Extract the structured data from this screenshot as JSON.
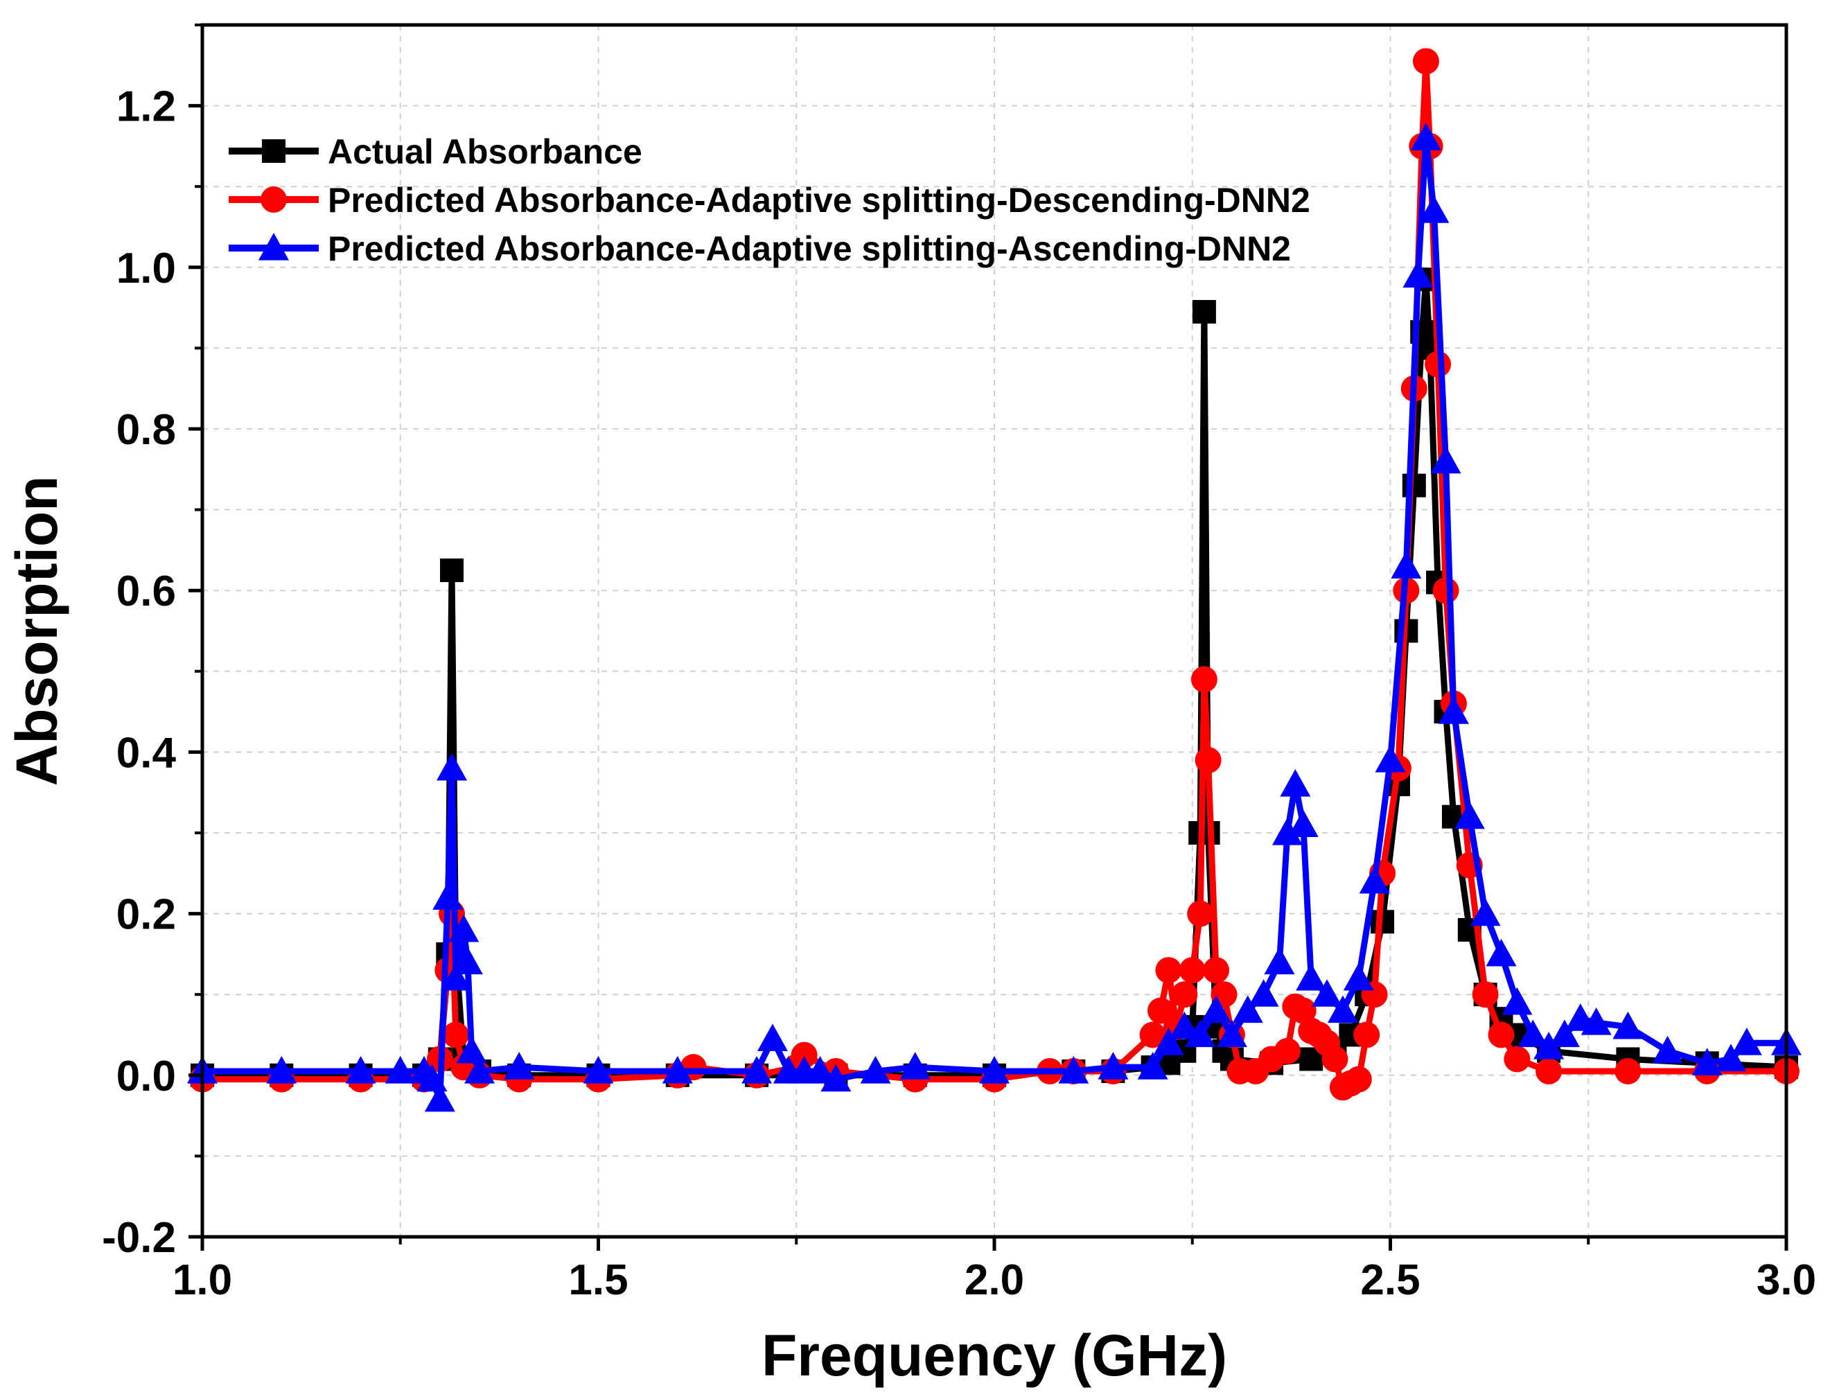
{
  "chart_data": {
    "type": "line",
    "title": "",
    "xlabel": "Frequency (GHz)",
    "ylabel": "Absorption",
    "xlim": [
      1.0,
      3.0
    ],
    "ylim": [
      -0.2,
      1.3
    ],
    "x_ticks": [
      "1.0",
      "1.5",
      "2.0",
      "2.5",
      "3.0"
    ],
    "y_ticks": [
      "-0.2",
      "0.0",
      "0.2",
      "0.4",
      "0.6",
      "0.8",
      "1.0",
      "1.2"
    ],
    "grid": true,
    "legend_position": "top-left",
    "series": [
      {
        "name": "Actual Absorbance",
        "color": "#000000",
        "marker": "square",
        "x": [
          1.0,
          1.1,
          1.2,
          1.28,
          1.3,
          1.31,
          1.315,
          1.32,
          1.33,
          1.35,
          1.4,
          1.5,
          1.6,
          1.7,
          1.8,
          1.9,
          2.0,
          2.1,
          2.15,
          2.2,
          2.22,
          2.24,
          2.25,
          2.26,
          2.265,
          2.27,
          2.28,
          2.29,
          2.3,
          2.35,
          2.4,
          2.43,
          2.45,
          2.47,
          2.49,
          2.51,
          2.52,
          2.53,
          2.54,
          2.545,
          2.55,
          2.56,
          2.57,
          2.58,
          2.6,
          2.62,
          2.64,
          2.66,
          2.7,
          2.8,
          2.9,
          3.0
        ],
        "y": [
          0.0,
          0.0,
          0.0,
          0.0,
          0.02,
          0.15,
          0.625,
          0.15,
          0.02,
          0.005,
          0.0,
          0.0,
          0.0,
          0.0,
          0.0,
          0.0,
          0.0,
          0.005,
          0.005,
          0.01,
          0.015,
          0.03,
          0.06,
          0.3,
          0.945,
          0.3,
          0.06,
          0.03,
          0.02,
          0.015,
          0.02,
          0.03,
          0.05,
          0.1,
          0.19,
          0.36,
          0.55,
          0.73,
          0.92,
          0.985,
          0.9,
          0.61,
          0.45,
          0.32,
          0.18,
          0.1,
          0.07,
          0.05,
          0.03,
          0.02,
          0.015,
          0.01
        ]
      },
      {
        "name": "Predicted Absorbance-Adaptive splitting-Descending-DNN2",
        "color": "#ff0000",
        "marker": "circle",
        "x": [
          1.0,
          1.1,
          1.2,
          1.28,
          1.3,
          1.31,
          1.315,
          1.32,
          1.33,
          1.35,
          1.4,
          1.5,
          1.6,
          1.62,
          1.7,
          1.75,
          1.76,
          1.8,
          1.9,
          2.0,
          2.07,
          2.1,
          2.15,
          2.2,
          2.21,
          2.22,
          2.23,
          2.24,
          2.25,
          2.26,
          2.265,
          2.27,
          2.28,
          2.29,
          2.3,
          2.31,
          2.33,
          2.35,
          2.37,
          2.38,
          2.39,
          2.4,
          2.41,
          2.42,
          2.43,
          2.44,
          2.45,
          2.46,
          2.47,
          2.48,
          2.49,
          2.51,
          2.52,
          2.53,
          2.54,
          2.545,
          2.55,
          2.56,
          2.57,
          2.58,
          2.6,
          2.62,
          2.64,
          2.66,
          2.7,
          2.8,
          2.9,
          3.0
        ],
        "y": [
          -0.005,
          -0.005,
          -0.005,
          -0.005,
          0.02,
          0.13,
          0.2,
          0.05,
          0.01,
          0.0,
          -0.005,
          -0.005,
          0.0,
          0.01,
          0.0,
          0.01,
          0.025,
          0.005,
          -0.005,
          -0.005,
          0.005,
          0.005,
          0.005,
          0.05,
          0.08,
          0.13,
          0.06,
          0.1,
          0.13,
          0.2,
          0.49,
          0.39,
          0.13,
          0.1,
          0.05,
          0.005,
          0.005,
          0.02,
          0.03,
          0.085,
          0.08,
          0.055,
          0.05,
          0.04,
          0.02,
          -0.015,
          -0.01,
          -0.005,
          0.05,
          0.1,
          0.25,
          0.38,
          0.6,
          0.85,
          1.15,
          1.255,
          1.15,
          0.88,
          0.6,
          0.46,
          0.26,
          0.1,
          0.05,
          0.02,
          0.005,
          0.005,
          0.005,
          0.005
        ]
      },
      {
        "name": "Predicted Absorbance-Adaptive splitting-Ascending-DNN2",
        "color": "#0000ff",
        "marker": "triangle",
        "x": [
          1.0,
          1.1,
          1.2,
          1.25,
          1.28,
          1.29,
          1.3,
          1.31,
          1.315,
          1.32,
          1.33,
          1.335,
          1.34,
          1.35,
          1.4,
          1.5,
          1.6,
          1.7,
          1.72,
          1.74,
          1.76,
          1.78,
          1.8,
          1.85,
          1.9,
          2.0,
          2.1,
          2.15,
          2.2,
          2.22,
          2.24,
          2.26,
          2.28,
          2.3,
          2.32,
          2.34,
          2.36,
          2.37,
          2.38,
          2.39,
          2.4,
          2.42,
          2.44,
          2.46,
          2.48,
          2.5,
          2.52,
          2.535,
          2.545,
          2.555,
          2.57,
          2.58,
          2.6,
          2.62,
          2.64,
          2.66,
          2.68,
          2.7,
          2.72,
          2.74,
          2.76,
          2.8,
          2.85,
          2.9,
          2.93,
          2.95,
          3.0
        ],
        "y": [
          0.005,
          0.005,
          0.005,
          0.005,
          0.005,
          -0.005,
          -0.03,
          0.22,
          0.38,
          0.12,
          0.18,
          0.14,
          0.03,
          0.005,
          0.01,
          0.005,
          0.005,
          0.005,
          0.045,
          0.005,
          0.005,
          0.005,
          -0.005,
          0.005,
          0.01,
          0.005,
          0.005,
          0.01,
          0.01,
          0.04,
          0.06,
          0.05,
          0.08,
          0.05,
          0.08,
          0.1,
          0.14,
          0.3,
          0.36,
          0.31,
          0.12,
          0.1,
          0.08,
          0.12,
          0.24,
          0.39,
          0.63,
          0.99,
          1.16,
          1.07,
          0.76,
          0.45,
          0.32,
          0.2,
          0.15,
          0.09,
          0.05,
          0.035,
          0.05,
          0.07,
          0.065,
          0.06,
          0.03,
          0.015,
          0.02,
          0.04,
          0.04
        ]
      }
    ]
  }
}
